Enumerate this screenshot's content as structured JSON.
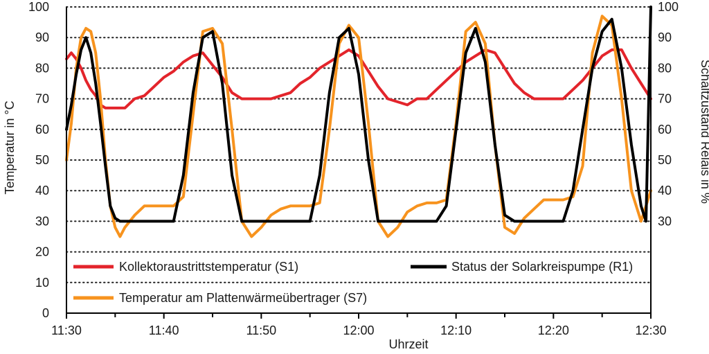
{
  "chart_data": {
    "type": "line",
    "xlabel": "Uhrzeit",
    "ylabel": "Temperatur in °C",
    "y2label": "Schaltzustand Relais in %",
    "xlim": [
      0,
      60
    ],
    "ylim": [
      0,
      100
    ],
    "y2lim": [
      0,
      100
    ],
    "x_ticks": [
      0,
      10,
      20,
      30,
      40,
      50,
      60
    ],
    "x_tick_labels": [
      "11:30",
      "11:40",
      "11:50",
      "12:00",
      "12:10",
      "12:20",
      "12:30"
    ],
    "y_ticks": [
      0,
      10,
      20,
      30,
      40,
      50,
      60,
      70,
      80,
      90,
      100
    ],
    "y2_ticks": [
      30,
      40,
      50,
      60,
      70,
      80,
      90,
      100
    ],
    "grid": "horizontal-dotted",
    "series": [
      {
        "name": "Kollektoraustrittstemperatur (S1)",
        "color": "#e3242b",
        "axis": "left",
        "x": [
          0,
          0.5,
          1,
          1.5,
          2,
          2.5,
          3,
          3.5,
          4,
          4.5,
          5,
          5.5,
          6,
          7,
          8,
          9,
          10,
          11,
          12,
          13,
          14,
          15,
          16,
          17,
          18,
          19,
          20,
          21,
          22,
          23,
          24,
          25,
          26,
          27,
          28,
          29,
          30,
          31,
          32,
          33,
          34,
          35,
          36,
          37,
          38,
          39,
          40,
          41,
          42,
          43,
          44,
          45,
          46,
          47,
          48,
          49,
          50,
          51,
          52,
          53,
          54,
          55,
          56,
          57,
          58,
          59,
          60
        ],
        "values": [
          83,
          85,
          83,
          80,
          76,
          73,
          71,
          68,
          67,
          67,
          67,
          67,
          67,
          70,
          71,
          74,
          77,
          79,
          82,
          84,
          85,
          81,
          77,
          72,
          70,
          70,
          70,
          70,
          71,
          72,
          75,
          77,
          80,
          82,
          84,
          86,
          84,
          79,
          74,
          70,
          69,
          68,
          70,
          70,
          73,
          76,
          79,
          82,
          84,
          86,
          85,
          80,
          75,
          72,
          70,
          70,
          70,
          70,
          73,
          76,
          80,
          84,
          86,
          86,
          80,
          75,
          70
        ]
      },
      {
        "name": "Temperatur am Plattenwärmeübertrager (S7)",
        "color": "#f7931e",
        "axis": "left",
        "x": [
          0,
          0.5,
          1,
          1.5,
          2,
          2.5,
          3,
          3.5,
          4,
          4.5,
          5,
          5.5,
          6,
          7,
          8,
          9,
          10,
          11,
          12,
          13,
          14,
          15,
          16,
          17,
          18,
          19,
          20,
          21,
          22,
          23,
          24,
          25,
          26,
          27,
          28,
          29,
          30,
          31,
          32,
          33,
          34,
          35,
          36,
          37,
          38,
          39,
          40,
          41,
          42,
          43,
          44,
          45,
          46,
          47,
          48,
          49,
          50,
          51,
          52,
          53,
          54,
          55,
          56,
          57,
          58,
          59,
          60
        ],
        "values": [
          50,
          62,
          80,
          90,
          93,
          92,
          85,
          70,
          50,
          35,
          28,
          25,
          28,
          32,
          35,
          35,
          35,
          35,
          38,
          65,
          92,
          93,
          88,
          60,
          30,
          25,
          28,
          32,
          34,
          35,
          35,
          35,
          36,
          60,
          88,
          94,
          90,
          62,
          30,
          25,
          28,
          33,
          35,
          36,
          36,
          37,
          62,
          92,
          95,
          88,
          55,
          28,
          26,
          31,
          34,
          37,
          37,
          37,
          38,
          48,
          85,
          97,
          94,
          70,
          40,
          30,
          40
        ]
      },
      {
        "name": "Status der Solarkreispumpe (R1)",
        "color": "#000000",
        "axis": "right",
        "x": [
          0,
          0.5,
          1,
          1.5,
          2,
          2.5,
          3,
          3.5,
          4,
          4.5,
          5,
          5.5,
          6,
          7,
          8,
          9,
          10,
          11,
          12,
          13,
          14,
          15,
          16,
          17,
          18,
          19,
          20,
          21,
          22,
          23,
          24,
          25,
          26,
          27,
          28,
          29,
          30,
          31,
          32,
          33,
          34,
          35,
          36,
          37,
          38,
          39,
          40,
          41,
          42,
          43,
          44,
          45,
          46,
          47,
          48,
          49,
          50,
          51,
          52,
          53,
          54,
          55,
          56,
          57,
          58,
          59,
          59.5,
          60
        ],
        "values": [
          60,
          68,
          78,
          86,
          90,
          85,
          75,
          62,
          48,
          35,
          31,
          30,
          30,
          30,
          30,
          30,
          30,
          30,
          45,
          72,
          90,
          92,
          75,
          45,
          30,
          30,
          30,
          30,
          30,
          30,
          30,
          30,
          45,
          72,
          90,
          93,
          78,
          50,
          30,
          30,
          30,
          30,
          30,
          30,
          30,
          35,
          60,
          85,
          93,
          82,
          55,
          32,
          30,
          30,
          30,
          30,
          30,
          30,
          40,
          60,
          80,
          92,
          96,
          80,
          55,
          35,
          30,
          100
        ]
      }
    ],
    "legend": [
      {
        "label": "Kollektoraustrittstemperatur (S1)",
        "color": "#e3242b"
      },
      {
        "label": "Status der Solarkreispumpe (R1)",
        "color": "#000000"
      },
      {
        "label": "Temperatur am Plattenwärmeübertrager (S7)",
        "color": "#f7931e"
      }
    ]
  }
}
